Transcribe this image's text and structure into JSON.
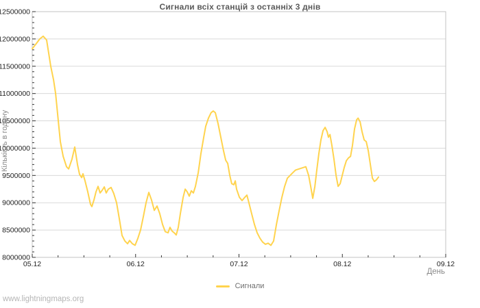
{
  "watermark": "www.lightningmaps.org",
  "colors": {
    "line": "#ffd34d",
    "grid": "#d9d9d9",
    "plot_border": "#c3c3c3",
    "tick": "#333333",
    "tick_label": "#1f1f1f",
    "title": "#595959",
    "axis_title": "#8a8a8a",
    "legend_text": "#6e6e6e",
    "watermark": "#b5b5b5",
    "background": "#ffffff"
  },
  "chart_data": {
    "type": "line",
    "title": "Сигнали всіх станцій з останніх 3 днів",
    "xlabel": "День",
    "ylabel": "Кількість в годину",
    "x_tick_labels": [
      "05.12",
      "06.12",
      "07.12",
      "08.12",
      "09.12"
    ],
    "x_minor_ticks_per_day": 4,
    "y_ticks": [
      8000000,
      8500000,
      9000000,
      9500000,
      10000000,
      10500000,
      11000000,
      11500000,
      12000000,
      12500000
    ],
    "y_minor_tick_step": 100000,
    "ylim": [
      8000000,
      12500000
    ],
    "xlim_days": [
      0,
      4
    ],
    "grid": "horizontal",
    "legend": {
      "position": "bottom-center",
      "entries": [
        {
          "label": "Сигнали",
          "color": "#ffd34d"
        }
      ]
    },
    "x_unit": "days since 05.12",
    "y_unit": "signals per hour",
    "series": [
      {
        "name": "Сигнали",
        "color": "#ffd34d",
        "points": [
          [
            0.0,
            11820000
          ],
          [
            0.033,
            11900000
          ],
          [
            0.073,
            12000000
          ],
          [
            0.106,
            12050000
          ],
          [
            0.139,
            11980000
          ],
          [
            0.179,
            11500000
          ],
          [
            0.206,
            11250000
          ],
          [
            0.226,
            11000000
          ],
          [
            0.252,
            10500000
          ],
          [
            0.272,
            10120000
          ],
          [
            0.299,
            9850000
          ],
          [
            0.332,
            9660000
          ],
          [
            0.352,
            9620000
          ],
          [
            0.385,
            9800000
          ],
          [
            0.411,
            10020000
          ],
          [
            0.438,
            9700000
          ],
          [
            0.458,
            9520000
          ],
          [
            0.478,
            9460000
          ],
          [
            0.491,
            9530000
          ],
          [
            0.511,
            9400000
          ],
          [
            0.537,
            9200000
          ],
          [
            0.564,
            8970000
          ],
          [
            0.577,
            8930000
          ],
          [
            0.597,
            9050000
          ],
          [
            0.617,
            9200000
          ],
          [
            0.637,
            9300000
          ],
          [
            0.657,
            9180000
          ],
          [
            0.677,
            9230000
          ],
          [
            0.697,
            9290000
          ],
          [
            0.716,
            9180000
          ],
          [
            0.736,
            9250000
          ],
          [
            0.763,
            9280000
          ],
          [
            0.789,
            9170000
          ],
          [
            0.816,
            9000000
          ],
          [
            0.843,
            8700000
          ],
          [
            0.869,
            8400000
          ],
          [
            0.896,
            8300000
          ],
          [
            0.922,
            8250000
          ],
          [
            0.942,
            8310000
          ],
          [
            0.969,
            8250000
          ],
          [
            0.995,
            8220000
          ],
          [
            1.022,
            8350000
          ],
          [
            1.048,
            8500000
          ],
          [
            1.075,
            8750000
          ],
          [
            1.101,
            9000000
          ],
          [
            1.128,
            9190000
          ],
          [
            1.154,
            9050000
          ],
          [
            1.181,
            8860000
          ],
          [
            1.207,
            8940000
          ],
          [
            1.234,
            8800000
          ],
          [
            1.261,
            8600000
          ],
          [
            1.287,
            8470000
          ],
          [
            1.314,
            8450000
          ],
          [
            1.333,
            8550000
          ],
          [
            1.353,
            8480000
          ],
          [
            1.373,
            8450000
          ],
          [
            1.393,
            8410000
          ],
          [
            1.413,
            8550000
          ],
          [
            1.433,
            8800000
          ],
          [
            1.46,
            9100000
          ],
          [
            1.48,
            9250000
          ],
          [
            1.499,
            9200000
          ],
          [
            1.519,
            9120000
          ],
          [
            1.539,
            9220000
          ],
          [
            1.559,
            9180000
          ],
          [
            1.579,
            9300000
          ],
          [
            1.606,
            9550000
          ],
          [
            1.632,
            9900000
          ],
          [
            1.659,
            10200000
          ],
          [
            1.678,
            10400000
          ],
          [
            1.705,
            10550000
          ],
          [
            1.731,
            10650000
          ],
          [
            1.751,
            10680000
          ],
          [
            1.771,
            10650000
          ],
          [
            1.798,
            10450000
          ],
          [
            1.824,
            10200000
          ],
          [
            1.851,
            9950000
          ],
          [
            1.871,
            9780000
          ],
          [
            1.891,
            9720000
          ],
          [
            1.911,
            9500000
          ],
          [
            1.93,
            9350000
          ],
          [
            1.95,
            9330000
          ],
          [
            1.964,
            9400000
          ],
          [
            1.977,
            9250000
          ],
          [
            2.004,
            9100000
          ],
          [
            2.03,
            9040000
          ],
          [
            2.057,
            9100000
          ],
          [
            2.077,
            9140000
          ],
          [
            2.096,
            9000000
          ],
          [
            2.123,
            8800000
          ],
          [
            2.15,
            8600000
          ],
          [
            2.176,
            8450000
          ],
          [
            2.203,
            8350000
          ],
          [
            2.229,
            8280000
          ],
          [
            2.256,
            8240000
          ],
          [
            2.282,
            8260000
          ],
          [
            2.309,
            8220000
          ],
          [
            2.335,
            8300000
          ],
          [
            2.362,
            8600000
          ],
          [
            2.388,
            8850000
          ],
          [
            2.415,
            9100000
          ],
          [
            2.442,
            9300000
          ],
          [
            2.468,
            9450000
          ],
          [
            2.495,
            9500000
          ],
          [
            2.521,
            9550000
          ],
          [
            2.548,
            9600000
          ],
          [
            2.581,
            9620000
          ],
          [
            2.614,
            9640000
          ],
          [
            2.647,
            9660000
          ],
          [
            2.674,
            9500000
          ],
          [
            2.694,
            9300000
          ],
          [
            2.714,
            9080000
          ],
          [
            2.734,
            9300000
          ],
          [
            2.753,
            9600000
          ],
          [
            2.773,
            9900000
          ],
          [
            2.793,
            10150000
          ],
          [
            2.813,
            10320000
          ],
          [
            2.833,
            10380000
          ],
          [
            2.853,
            10300000
          ],
          [
            2.866,
            10200000
          ],
          [
            2.88,
            10250000
          ],
          [
            2.899,
            10050000
          ],
          [
            2.919,
            9800000
          ],
          [
            2.939,
            9500000
          ],
          [
            2.959,
            9300000
          ],
          [
            2.979,
            9350000
          ],
          [
            2.999,
            9500000
          ],
          [
            3.019,
            9650000
          ],
          [
            3.039,
            9770000
          ],
          [
            3.059,
            9820000
          ],
          [
            3.079,
            9850000
          ],
          [
            3.098,
            10050000
          ],
          [
            3.118,
            10350000
          ],
          [
            3.138,
            10520000
          ],
          [
            3.152,
            10550000
          ],
          [
            3.172,
            10480000
          ],
          [
            3.191,
            10300000
          ],
          [
            3.211,
            10150000
          ],
          [
            3.231,
            10120000
          ],
          [
            3.251,
            9950000
          ],
          [
            3.271,
            9700000
          ],
          [
            3.291,
            9450000
          ],
          [
            3.31,
            9390000
          ],
          [
            3.33,
            9420000
          ],
          [
            3.35,
            9470000
          ]
        ]
      }
    ]
  }
}
